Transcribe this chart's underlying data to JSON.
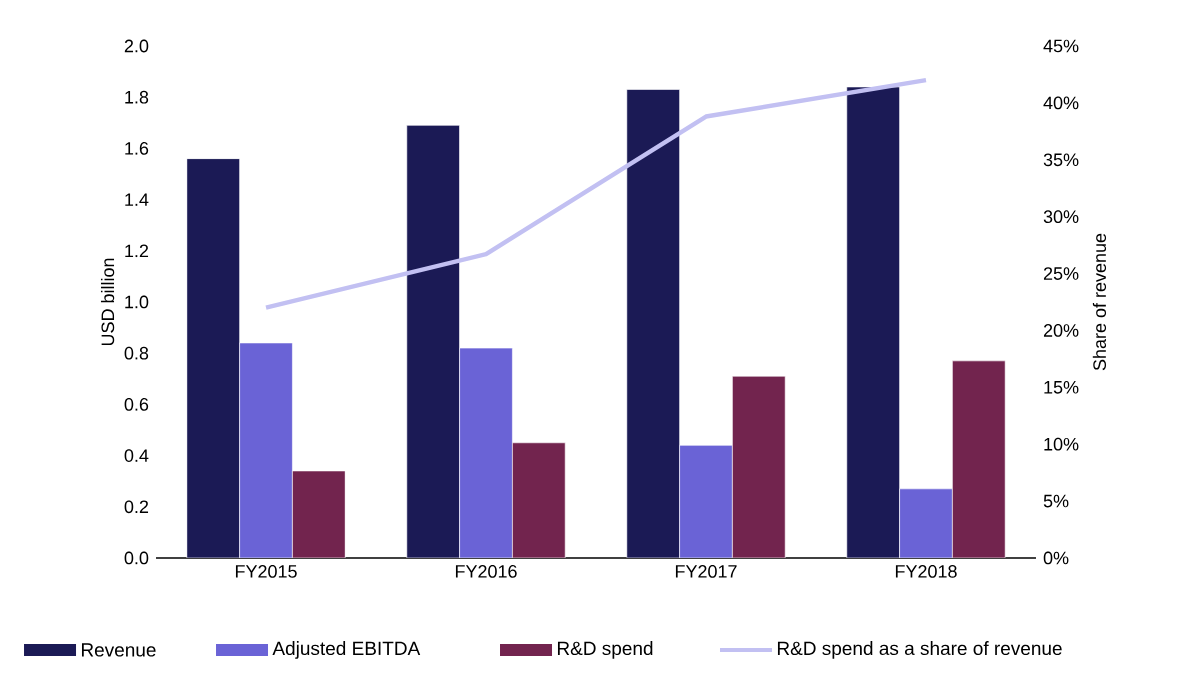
{
  "chart_data": {
    "type": "bar",
    "categories": [
      "FY2015",
      "FY2016",
      "FY2017",
      "FY2018"
    ],
    "ylabel": "USD billion",
    "y2label": "Share of revenue",
    "ylim": [
      0,
      2.0
    ],
    "yticks": [
      {
        "value": 0,
        "label": "0.0"
      },
      {
        "value": 0.2,
        "label": "0.2"
      },
      {
        "value": 0.4,
        "label": "0.4"
      },
      {
        "value": 0.6,
        "label": "0.6"
      },
      {
        "value": 0.8,
        "label": "0.8"
      },
      {
        "value": 1.0,
        "label": "1.0"
      },
      {
        "value": 1.2,
        "label": "1.2"
      },
      {
        "value": 1.4,
        "label": "1.4"
      },
      {
        "value": 1.6,
        "label": "1.6"
      },
      {
        "value": 1.8,
        "label": "1.8"
      },
      {
        "value": 2.0,
        "label": "2.0"
      }
    ],
    "y2lim": [
      0,
      45
    ],
    "y2ticks": [
      {
        "value": 0,
        "label": "0%"
      },
      {
        "value": 5,
        "label": "5%"
      },
      {
        "value": 10,
        "label": "10%"
      },
      {
        "value": 15,
        "label": "15%"
      },
      {
        "value": 20,
        "label": "20%"
      },
      {
        "value": 25,
        "label": "25%"
      },
      {
        "value": 30,
        "label": "30%"
      },
      {
        "value": 35,
        "label": "35%"
      },
      {
        "value": 40,
        "label": "40%"
      },
      {
        "value": 45,
        "label": "45%"
      }
    ],
    "legend": "bottom",
    "grid": false,
    "series": [
      {
        "name": "Revenue",
        "color": "#1b1a55",
        "values": [
          1.56,
          1.69,
          1.83,
          1.84
        ]
      },
      {
        "name": "Adjusted EBITDA",
        "color": "#6a63d6",
        "values": [
          0.84,
          0.82,
          0.44,
          0.27
        ]
      },
      {
        "name": "R&D spend",
        "color": "#72244e",
        "values": [
          0.34,
          0.45,
          0.71,
          0.77
        ]
      },
      {
        "name": "R&D spend as a share of revenue",
        "type": "line",
        "axis": "y2",
        "color": "#c2c0f2",
        "values": [
          22,
          26.7,
          38.8,
          42
        ]
      }
    ]
  }
}
